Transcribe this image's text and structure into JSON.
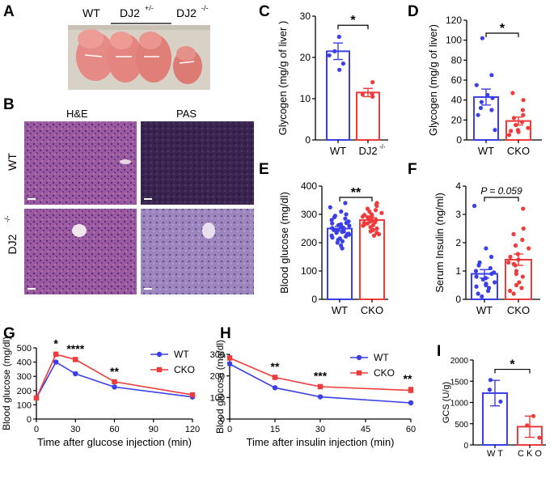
{
  "figure": {
    "panel_letters": [
      "A",
      "B",
      "C",
      "D",
      "E",
      "F",
      "G",
      "H",
      "I"
    ]
  },
  "panel_a": {
    "labels": [
      "WT",
      "DJ2",
      "+/-",
      "DJ2",
      "-/-"
    ]
  },
  "panel_b": {
    "col_labels": [
      "H&E",
      "PAS"
    ],
    "row_wt": "WT",
    "row_dj2": "DJ2",
    "row_dj2_sup": "-/-"
  },
  "colors": {
    "wt": "#3b3fe8",
    "cko": "#ef3b3b",
    "black": "#000000"
  },
  "chart_data": [
    {
      "panel": "C",
      "type": "bar",
      "categories": [
        "WT",
        "DJ2-/-"
      ],
      "cat_label_main": [
        "WT",
        "DJ2"
      ],
      "cat_label_sup": [
        "",
        "-/-"
      ],
      "values": [
        21.5,
        11.5
      ],
      "errors": [
        2.0,
        1.0
      ],
      "points": [
        [
          25,
          21.5,
          18.5,
          20.5,
          17
        ],
        [
          14,
          11,
          10.5,
          11.2
        ]
      ],
      "ylabel": "Glycogen (mg/g of liver )",
      "ylim": [
        0,
        30
      ],
      "yticks": [
        0,
        10,
        20,
        30
      ],
      "significance": "*"
    },
    {
      "panel": "D",
      "type": "bar",
      "categories": [
        "WT",
        "CKO"
      ],
      "values": [
        43,
        19
      ],
      "errors": [
        8,
        4
      ],
      "points": [
        [
          102,
          65,
          55,
          45,
          42,
          38,
          32,
          30,
          25,
          10
        ],
        [
          47,
          40,
          30,
          25,
          22,
          18,
          15,
          12,
          10,
          9,
          8,
          5
        ]
      ],
      "ylabel": "Glycogen (mg/g of liver)",
      "ylim": [
        0,
        120
      ],
      "yticks": [
        0,
        20,
        40,
        60,
        80,
        100,
        120
      ],
      "significance": "*"
    },
    {
      "panel": "E",
      "type": "bar",
      "categories": [
        "WT",
        "CKO"
      ],
      "values": [
        250,
        280
      ],
      "errors": [
        8,
        8
      ],
      "points": [
        [
          340,
          325,
          310,
          300,
          295,
          290,
          285,
          280,
          275,
          270,
          268,
          265,
          262,
          260,
          258,
          255,
          252,
          250,
          248,
          245,
          242,
          240,
          238,
          235,
          232,
          230,
          228,
          225,
          222,
          218,
          215,
          210,
          205,
          200,
          190,
          180
        ],
        [
          340,
          335,
          330,
          320,
          315,
          310,
          305,
          300,
          298,
          295,
          292,
          290,
          288,
          285,
          282,
          280,
          278,
          275,
          272,
          270,
          268,
          265,
          262,
          260,
          255,
          250,
          245,
          240,
          235,
          230,
          225
        ]
      ],
      "ylabel": "Blood glucose  (mg/dl)",
      "ylim": [
        0,
        400
      ],
      "yticks": [
        0,
        100,
        200,
        300,
        400
      ],
      "significance": "**"
    },
    {
      "panel": "F",
      "type": "bar",
      "categories": [
        "WT",
        "CKO"
      ],
      "values": [
        0.9,
        1.4
      ],
      "errors": [
        0.15,
        0.2
      ],
      "points": [
        [
          3.3,
          1.8,
          1.5,
          1.3,
          1.2,
          1.1,
          1.0,
          0.95,
          0.9,
          0.8,
          0.75,
          0.7,
          0.6,
          0.55,
          0.5,
          0.45,
          0.4,
          0.3,
          0.2,
          0.1
        ],
        [
          3.2,
          2.5,
          2.3,
          2.1,
          1.9,
          1.8,
          1.6,
          1.5,
          1.4,
          1.3,
          1.25,
          1.2,
          1.0,
          0.9,
          0.8,
          0.6,
          0.5,
          0.4,
          0.3,
          0.2
        ]
      ],
      "ylabel": "Serum Insulin (ng/ml)",
      "ylim": [
        0,
        4
      ],
      "yticks": [
        0,
        1,
        2,
        3,
        4
      ],
      "significance": "P = 0.059"
    },
    {
      "panel": "G",
      "type": "line",
      "x": [
        0,
        15,
        30,
        60,
        120
      ],
      "series": [
        {
          "name": "WT",
          "values": [
            148,
            400,
            318,
            225,
            155
          ],
          "errors": [
            10,
            10,
            12,
            8,
            8
          ]
        },
        {
          "name": "CKO",
          "values": [
            148,
            455,
            418,
            262,
            170
          ],
          "errors": [
            10,
            14,
            14,
            10,
            8
          ]
        }
      ],
      "annotations": [
        {
          "x": 15,
          "text": "*"
        },
        {
          "x": 30,
          "text": "****"
        },
        {
          "x": 60,
          "text": "**"
        }
      ],
      "xlabel": "Time after glucose injection (min)",
      "ylabel": "Blood glucose (mg/dl)",
      "xlim": [
        0,
        120
      ],
      "xticks": [
        0,
        30,
        60,
        90,
        120
      ],
      "ylim": [
        0,
        500
      ],
      "yticks": [
        0,
        100,
        200,
        300,
        400,
        500
      ],
      "legend": "top-right"
    },
    {
      "panel": "H",
      "type": "line",
      "x": [
        0,
        15,
        30,
        60
      ],
      "series": [
        {
          "name": "WT",
          "values": [
            255,
            145,
            103,
            75
          ],
          "errors": [
            8,
            6,
            4,
            4
          ]
        },
        {
          "name": "CKO",
          "values": [
            283,
            193,
            150,
            133
          ],
          "errors": [
            8,
            10,
            10,
            14
          ]
        }
      ],
      "annotations": [
        {
          "x": 15,
          "text": "**"
        },
        {
          "x": 30,
          "text": "***"
        },
        {
          "x": 60,
          "text": "**"
        }
      ],
      "xlabel": "Time after insulin injection (min)",
      "ylabel": "Blood glucose (mg/dl)",
      "xlim": [
        0,
        60
      ],
      "xticks": [
        0,
        15,
        30,
        45,
        60
      ],
      "ylim": [
        0,
        300
      ],
      "yticks": [
        0,
        100,
        200,
        300
      ],
      "legend": "top-right"
    },
    {
      "panel": "I",
      "type": "bar",
      "categories": [
        "WT",
        "CKO"
      ],
      "values": [
        1220,
        430
      ],
      "errors": [
        300,
        250
      ],
      "points": [
        [
          1530,
          1300,
          1020
        ],
        [
          680,
          460,
          170
        ]
      ],
      "ylabel": "GCS (U/g)",
      "ylim": [
        0,
        2000
      ],
      "yticks": [
        0,
        500,
        1000,
        1500,
        2000
      ],
      "significance": "*"
    }
  ]
}
